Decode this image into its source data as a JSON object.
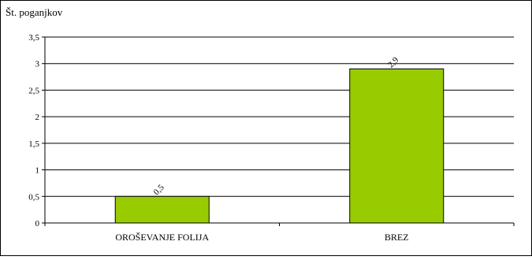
{
  "chart_data": {
    "type": "bar",
    "title": "",
    "xlabel": "",
    "ylabel": "Št. poganjkov",
    "categories": [
      "OROŠEVANJE FOLIJA",
      "BREZ"
    ],
    "values": [
      0.5,
      2.9
    ],
    "value_labels": [
      "0,5",
      "2,9"
    ],
    "ylim": [
      0,
      3.5
    ],
    "yticks": [
      0,
      0.5,
      1,
      1.5,
      2,
      2.5,
      3,
      3.5
    ],
    "ytick_labels": [
      "0",
      "0,5",
      "1",
      "1,5",
      "2",
      "2,5",
      "3",
      "3,5"
    ],
    "grid": true,
    "legend": "none",
    "bar_color": "#99cc00",
    "bar_edge_color": "#000000"
  }
}
